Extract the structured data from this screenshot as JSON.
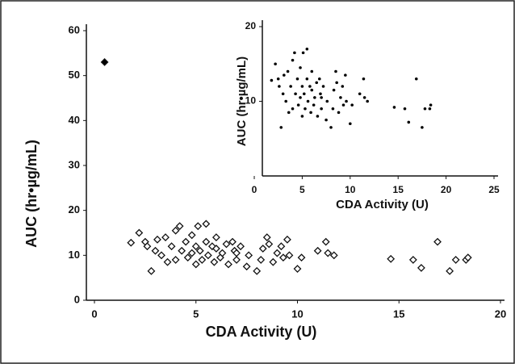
{
  "chart_data": [
    {
      "type": "scatter",
      "x_label": "CDA Activity (U)",
      "y_label": "AUC (hr•µg/mL)",
      "xlim": [
        0,
        20
      ],
      "ylim": [
        0,
        60
      ],
      "xticks": [
        0,
        5,
        10,
        15,
        20
      ],
      "yticks": [
        0,
        10,
        20,
        30,
        40,
        50,
        60
      ],
      "series": [
        {
          "color": "#000000",
          "x": [
            0.5
          ],
          "values": [
            53
          ]
        },
        {
          "color": "#ffffff",
          "x": [
            1.8,
            2.2,
            2.5,
            2.6,
            2.8,
            3,
            3.1,
            3.3,
            3.5,
            3.6,
            3.8,
            4,
            4,
            4.2,
            4.3,
            4.5,
            4.6,
            4.8,
            4.8,
            5,
            5,
            5.1,
            5.2,
            5.3,
            5.5,
            5.5,
            5.6,
            5.8,
            5.9,
            6,
            6,
            6.2,
            6.3,
            6.5,
            6.6,
            6.8,
            6.9,
            7,
            7,
            7.2,
            7.5,
            7.6,
            8,
            8.2,
            8.3,
            8.5,
            8.6,
            8.8,
            9,
            9.2,
            9.3,
            9.5,
            9.6,
            10,
            10.2,
            11,
            11.4,
            11.5,
            11.8,
            14.6,
            15.7,
            16.1,
            16.9,
            17.5,
            17.8,
            18.3,
            18.4
          ],
          "values": [
            12.8,
            15,
            13,
            12,
            6.5,
            11,
            13.5,
            10,
            14,
            8.5,
            12,
            9,
            15.5,
            16.5,
            11,
            13,
            9.5,
            14.5,
            10.5,
            12,
            8,
            16.5,
            11,
            9,
            17,
            13,
            10,
            12,
            8.5,
            11.5,
            14,
            9.5,
            10.5,
            12.5,
            8,
            13,
            11,
            9,
            10.5,
            12,
            7.5,
            10,
            6.5,
            9,
            11.5,
            14,
            12.5,
            8.5,
            10.5,
            12,
            9.5,
            13.5,
            10,
            7,
            9.5,
            11,
            13,
            10.5,
            10,
            9.2,
            9,
            7.2,
            13,
            6.5,
            9,
            9,
            9.5
          ]
        }
      ]
    },
    {
      "type": "scatter",
      "x_label": "CDA Activity (U)",
      "y_label": "AUC (hr•µg/mL)",
      "xlim": [
        0,
        25
      ],
      "ylim": [
        0,
        20
      ],
      "xticks": [
        0,
        5,
        10,
        15,
        20,
        25
      ],
      "yticks": [
        10,
        20
      ],
      "series": [
        {
          "color": "#000000",
          "x": [
            1.8,
            2.2,
            2.5,
            2.6,
            2.8,
            3,
            3.1,
            3.3,
            3.5,
            3.6,
            3.8,
            4,
            4,
            4.2,
            4.3,
            4.5,
            4.6,
            4.8,
            4.8,
            5,
            5,
            5.1,
            5.2,
            5.3,
            5.5,
            5.5,
            5.6,
            5.8,
            5.9,
            6,
            6,
            6.2,
            6.3,
            6.5,
            6.6,
            6.8,
            6.9,
            7,
            7,
            7.2,
            7.5,
            7.6,
            8,
            8.2,
            8.3,
            8.5,
            8.6,
            8.8,
            9,
            9.2,
            9.3,
            9.5,
            9.6,
            10,
            10.2,
            11,
            11.4,
            11.5,
            11.8,
            14.6,
            15.7,
            16.1,
            16.9,
            17.5,
            17.8,
            18.3,
            18.4
          ],
          "values": [
            12.8,
            15,
            13,
            12,
            6.5,
            11,
            13.5,
            10,
            14,
            8.5,
            12,
            9,
            15.5,
            16.5,
            11,
            13,
            9.5,
            14.5,
            10.5,
            12,
            8,
            16.5,
            11,
            9,
            17,
            13,
            10,
            12,
            8.5,
            11.5,
            14,
            9.5,
            10.5,
            12.5,
            8,
            13,
            11,
            9,
            10.5,
            12,
            7.5,
            10,
            6.5,
            9,
            11.5,
            14,
            12.5,
            8.5,
            10.5,
            12,
            9.5,
            13.5,
            10,
            7,
            9.5,
            11,
            13,
            10.5,
            10,
            9.2,
            9,
            7.2,
            13,
            6.5,
            9,
            9,
            9.5
          ]
        }
      ]
    }
  ]
}
